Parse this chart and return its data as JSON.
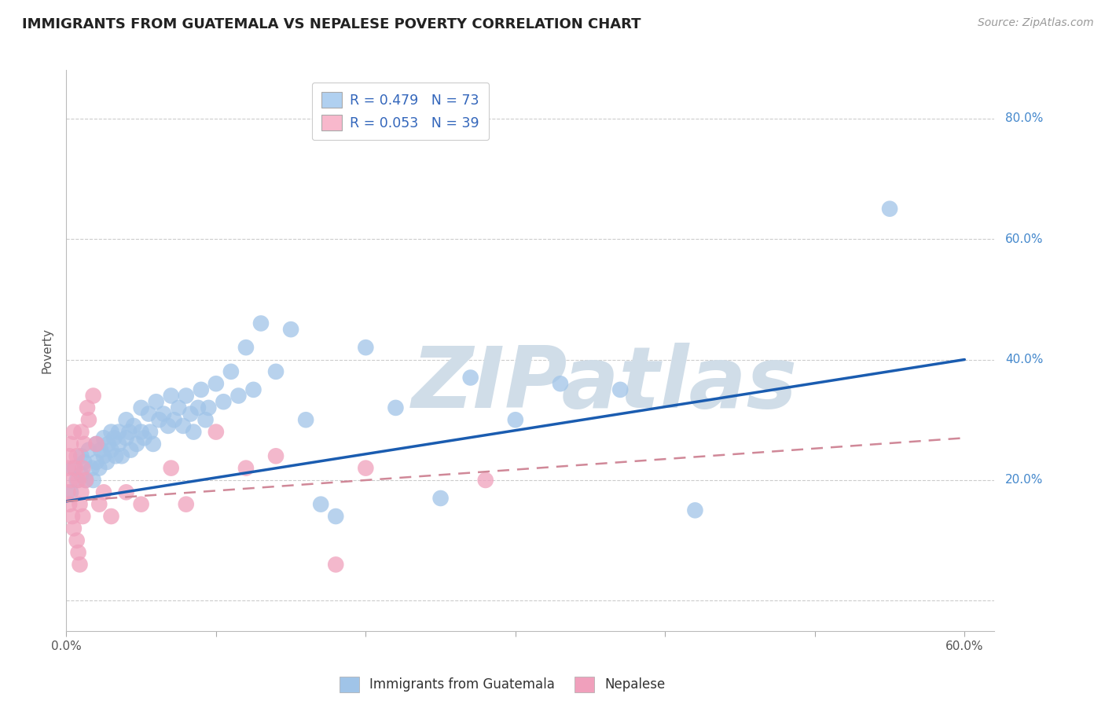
{
  "title": "IMMIGRANTS FROM GUATEMALA VS NEPALESE POVERTY CORRELATION CHART",
  "source": "Source: ZipAtlas.com",
  "ylabel": "Poverty",
  "xlim": [
    0.0,
    0.62
  ],
  "ylim": [
    -0.05,
    0.88
  ],
  "ytick_positions": [
    0.0,
    0.2,
    0.4,
    0.6,
    0.8
  ],
  "ytick_labels": [
    "",
    "20.0%",
    "40.0%",
    "60.0%",
    "80.0%"
  ],
  "xtick_positions": [
    0.0,
    0.1,
    0.2,
    0.3,
    0.4,
    0.5,
    0.6
  ],
  "xtick_labels": [
    "0.0%",
    "",
    "",
    "",
    "",
    "",
    "60.0%"
  ],
  "legend1_label": "R = 0.479   N = 73",
  "legend2_label": "R = 0.053   N = 39",
  "legend1_color": "#b0d0f0",
  "legend2_color": "#f8b8cc",
  "line1_color": "#1a5cb0",
  "line2_color": "#d08898",
  "scatter1_color": "#a0c4e8",
  "scatter2_color": "#f0a0bc",
  "watermark_text": "ZIPatlas",
  "watermark_color": "#d0dde8",
  "grid_color": "#cccccc",
  "bg_color": "#ffffff",
  "title_color": "#222222",
  "axis_label_color": "#555555",
  "tick_label_color": "#555555",
  "right_label_color": "#4488cc",
  "source_color": "#999999",
  "legend_text_color": "#3366bb",
  "bottom_legend_color": "#333333",
  "scatter1_x": [
    0.003,
    0.005,
    0.007,
    0.01,
    0.01,
    0.012,
    0.013,
    0.015,
    0.017,
    0.018,
    0.02,
    0.02,
    0.022,
    0.023,
    0.025,
    0.025,
    0.027,
    0.028,
    0.03,
    0.03,
    0.032,
    0.033,
    0.035,
    0.035,
    0.037,
    0.04,
    0.04,
    0.042,
    0.043,
    0.045,
    0.047,
    0.05,
    0.05,
    0.052,
    0.055,
    0.056,
    0.058,
    0.06,
    0.062,
    0.065,
    0.068,
    0.07,
    0.072,
    0.075,
    0.078,
    0.08,
    0.083,
    0.085,
    0.088,
    0.09,
    0.093,
    0.095,
    0.1,
    0.105,
    0.11,
    0.115,
    0.12,
    0.125,
    0.13,
    0.14,
    0.15,
    0.16,
    0.17,
    0.18,
    0.2,
    0.22,
    0.25,
    0.27,
    0.3,
    0.33,
    0.37,
    0.42,
    0.55
  ],
  "scatter1_y": [
    0.18,
    0.22,
    0.2,
    0.24,
    0.21,
    0.23,
    0.2,
    0.25,
    0.22,
    0.2,
    0.26,
    0.23,
    0.22,
    0.25,
    0.27,
    0.24,
    0.23,
    0.26,
    0.28,
    0.25,
    0.27,
    0.24,
    0.28,
    0.26,
    0.24,
    0.3,
    0.27,
    0.28,
    0.25,
    0.29,
    0.26,
    0.32,
    0.28,
    0.27,
    0.31,
    0.28,
    0.26,
    0.33,
    0.3,
    0.31,
    0.29,
    0.34,
    0.3,
    0.32,
    0.29,
    0.34,
    0.31,
    0.28,
    0.32,
    0.35,
    0.3,
    0.32,
    0.36,
    0.33,
    0.38,
    0.34,
    0.42,
    0.35,
    0.46,
    0.38,
    0.45,
    0.3,
    0.16,
    0.14,
    0.42,
    0.32,
    0.17,
    0.37,
    0.3,
    0.36,
    0.35,
    0.15,
    0.65
  ],
  "scatter2_x": [
    0.001,
    0.001,
    0.002,
    0.002,
    0.003,
    0.003,
    0.004,
    0.005,
    0.005,
    0.006,
    0.007,
    0.007,
    0.008,
    0.008,
    0.009,
    0.009,
    0.01,
    0.01,
    0.011,
    0.011,
    0.012,
    0.013,
    0.014,
    0.015,
    0.018,
    0.02,
    0.022,
    0.025,
    0.03,
    0.04,
    0.05,
    0.07,
    0.08,
    0.1,
    0.12,
    0.14,
    0.18,
    0.2,
    0.28
  ],
  "scatter2_y": [
    0.22,
    0.18,
    0.24,
    0.16,
    0.26,
    0.2,
    0.14,
    0.28,
    0.12,
    0.22,
    0.1,
    0.24,
    0.08,
    0.2,
    0.06,
    0.16,
    0.28,
    0.18,
    0.22,
    0.14,
    0.26,
    0.2,
    0.32,
    0.3,
    0.34,
    0.26,
    0.16,
    0.18,
    0.14,
    0.18,
    0.16,
    0.22,
    0.16,
    0.28,
    0.22,
    0.24,
    0.06,
    0.22,
    0.2
  ],
  "line1_x0": 0.0,
  "line1_x1": 0.6,
  "line1_y0": 0.165,
  "line1_y1": 0.4,
  "line2_x0": 0.0,
  "line2_x1": 0.6,
  "line2_y0": 0.165,
  "line2_y1": 0.27
}
